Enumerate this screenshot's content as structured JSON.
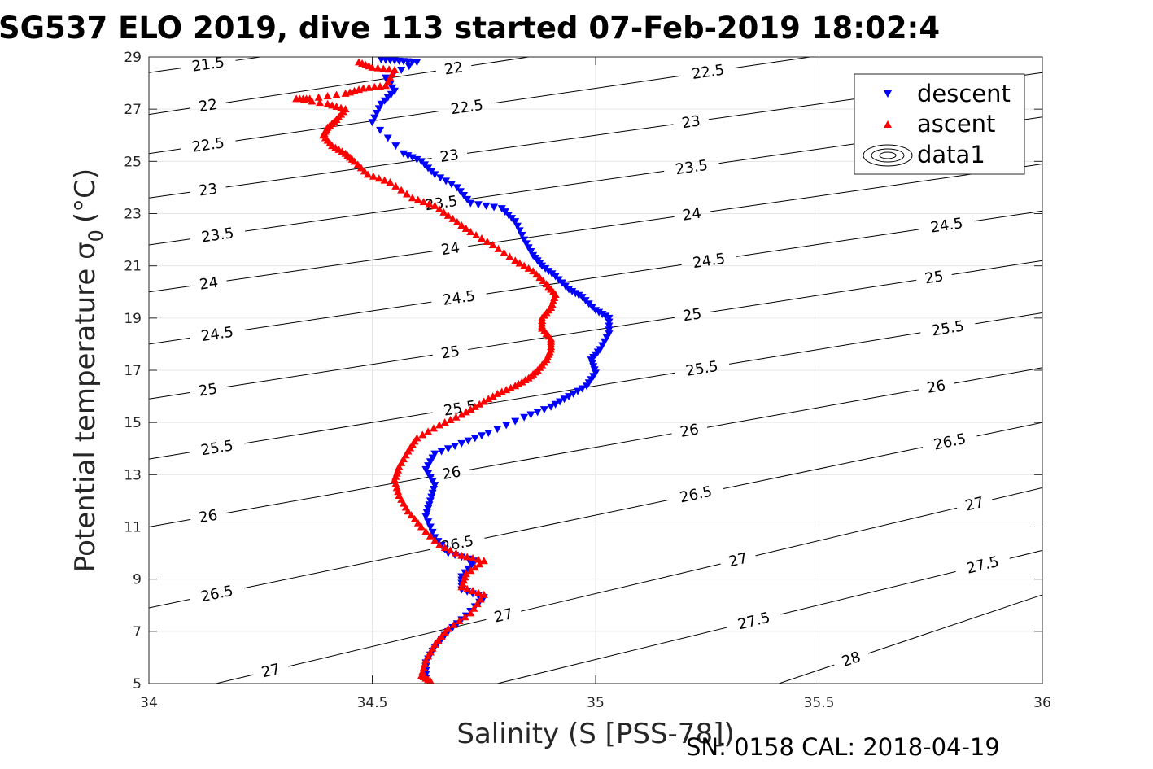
{
  "chart_data": {
    "type": "scatter",
    "title": "SG537 ELO 2019, dive 113 started 07-Feb-2019 18:02:4",
    "xlabel": "Salinity (S [PSS-78])",
    "ylabel": "Potential temperature σ",
    "ylabel_subscript": "0",
    "ylabel_unit": "(°C)",
    "footer": "SN: 0158  CAL: 2018-04-19",
    "xlim": [
      34,
      36
    ],
    "ylim": [
      5,
      29
    ],
    "xticks": [
      34,
      34.5,
      35,
      35.5,
      36
    ],
    "xtick_labels": [
      "34",
      "34.5",
      "35",
      "35.5",
      "36"
    ],
    "yticks": [
      5,
      7,
      9,
      11,
      13,
      15,
      17,
      19,
      21,
      23,
      25,
      27,
      29
    ],
    "ytick_labels": [
      "5",
      "7",
      "9",
      "11",
      "13",
      "15",
      "17",
      "19",
      "21",
      "23",
      "25",
      "27",
      "29"
    ],
    "grid": true,
    "legend_position": "top-right",
    "colors": {
      "descent": "#0000ff",
      "ascent": "#ff0000",
      "contour": "#000000",
      "grid": "#e6e6e6"
    },
    "series": [
      {
        "name": "descent",
        "marker": "triangle-down",
        "points": [
          [
            34.52,
            28.9
          ],
          [
            34.56,
            28.85
          ],
          [
            34.6,
            28.8
          ],
          [
            34.53,
            28.2
          ],
          [
            34.55,
            27.7
          ],
          [
            34.52,
            27.2
          ],
          [
            34.5,
            26.5
          ],
          [
            34.57,
            25.3
          ],
          [
            34.61,
            25.0
          ],
          [
            34.64,
            24.5
          ],
          [
            34.69,
            24.0
          ],
          [
            34.72,
            23.4
          ],
          [
            34.79,
            23.2
          ],
          [
            34.82,
            22.7
          ],
          [
            34.84,
            22.0
          ],
          [
            34.86,
            21.4
          ],
          [
            34.88,
            21.0
          ],
          [
            34.91,
            20.6
          ],
          [
            34.94,
            20.1
          ],
          [
            34.97,
            19.8
          ],
          [
            35.0,
            19.3
          ],
          [
            35.03,
            19.0
          ],
          [
            35.03,
            18.4
          ],
          [
            35.01,
            17.8
          ],
          [
            34.99,
            17.4
          ],
          [
            35.0,
            16.9
          ],
          [
            34.98,
            16.4
          ],
          [
            34.94,
            16.0
          ],
          [
            34.9,
            15.6
          ],
          [
            34.84,
            15.2
          ],
          [
            34.76,
            14.6
          ],
          [
            34.7,
            14.2
          ],
          [
            34.64,
            13.8
          ],
          [
            34.62,
            13.2
          ],
          [
            34.64,
            12.6
          ],
          [
            34.63,
            12.0
          ],
          [
            34.62,
            11.4
          ],
          [
            34.64,
            10.6
          ],
          [
            34.67,
            10.0
          ],
          [
            34.73,
            9.7
          ],
          [
            34.7,
            9.1
          ],
          [
            34.7,
            8.6
          ],
          [
            34.75,
            8.3
          ],
          [
            34.71,
            7.6
          ],
          [
            34.67,
            7.0
          ],
          [
            34.64,
            6.4
          ],
          [
            34.62,
            5.8
          ],
          [
            34.62,
            5.2
          ]
        ]
      },
      {
        "name": "ascent",
        "marker": "triangle-up",
        "points": [
          [
            34.47,
            28.8
          ],
          [
            34.5,
            28.6
          ],
          [
            34.55,
            28.5
          ],
          [
            34.53,
            27.9
          ],
          [
            34.48,
            27.8
          ],
          [
            34.44,
            27.6
          ],
          [
            34.36,
            27.4
          ],
          [
            34.33,
            27.4
          ],
          [
            34.4,
            27.2
          ],
          [
            34.44,
            27.0
          ],
          [
            34.42,
            26.6
          ],
          [
            34.4,
            26.3
          ],
          [
            34.39,
            26.0
          ],
          [
            34.41,
            25.6
          ],
          [
            34.44,
            25.3
          ],
          [
            34.46,
            25.0
          ],
          [
            34.49,
            24.5
          ],
          [
            34.54,
            24.2
          ],
          [
            34.59,
            23.6
          ],
          [
            34.64,
            23.3
          ],
          [
            34.68,
            22.8
          ],
          [
            34.72,
            22.3
          ],
          [
            34.77,
            21.8
          ],
          [
            34.82,
            21.2
          ],
          [
            34.86,
            20.8
          ],
          [
            34.89,
            20.3
          ],
          [
            34.91,
            19.9
          ],
          [
            34.9,
            19.4
          ],
          [
            34.88,
            19.0
          ],
          [
            34.88,
            18.6
          ],
          [
            34.9,
            18.2
          ],
          [
            34.9,
            17.8
          ],
          [
            34.89,
            17.4
          ],
          [
            34.87,
            17.0
          ],
          [
            34.85,
            16.7
          ],
          [
            34.82,
            16.4
          ],
          [
            34.78,
            16.1
          ],
          [
            34.74,
            15.7
          ],
          [
            34.7,
            15.3
          ],
          [
            34.65,
            14.9
          ],
          [
            34.6,
            14.4
          ],
          [
            34.58,
            13.9
          ],
          [
            34.56,
            13.3
          ],
          [
            34.55,
            12.8
          ],
          [
            34.56,
            12.2
          ],
          [
            34.58,
            11.6
          ],
          [
            34.61,
            11.0
          ],
          [
            34.65,
            10.3
          ],
          [
            34.7,
            9.9
          ],
          [
            34.75,
            9.7
          ],
          [
            34.71,
            9.2
          ],
          [
            34.7,
            8.7
          ],
          [
            34.75,
            8.4
          ],
          [
            34.72,
            7.7
          ],
          [
            34.67,
            7.1
          ],
          [
            34.64,
            6.5
          ],
          [
            34.62,
            5.9
          ],
          [
            34.61,
            5.3
          ],
          [
            34.63,
            5.1
          ]
        ]
      }
    ],
    "contours": {
      "legend_name": "data1",
      "levels": [
        {
          "label": "21.5",
          "line": [
            [
              34.0,
              28.4
            ],
            [
              34.25,
              29.0
            ]
          ],
          "label_at": [
            34.1,
            28.7
          ]
        },
        {
          "label": "22",
          "line": [
            [
              34.0,
              26.8
            ],
            [
              34.85,
              29.0
            ]
          ],
          "label_at": [
            34.1,
            27.1
          ],
          "label_at2": [
            34.65,
            28.5
          ]
        },
        {
          "label": "22.5",
          "line": [
            [
              34.0,
              25.3
            ],
            [
              35.48,
              29.0
            ]
          ],
          "label_at": [
            34.1,
            25.6
          ],
          "label_at2": [
            34.68,
            27.0
          ],
          "label_at3": [
            35.22,
            28.3
          ]
        },
        {
          "label": "23",
          "line": [
            [
              34.0,
              23.6
            ],
            [
              36.0,
              28.4
            ]
          ],
          "label_at": [
            34.1,
            23.9
          ],
          "label_at2": [
            34.64,
            25.2
          ],
          "label_at3": [
            35.18,
            26.6
          ]
        },
        {
          "label": "23.5",
          "line": [
            [
              34.0,
              21.8
            ],
            [
              36.0,
              26.7
            ]
          ],
          "label_at": [
            34.12,
            22.3
          ],
          "label_at2": [
            34.62,
            23.6
          ],
          "label_at3": [
            35.18,
            25.0
          ]
        },
        {
          "label": "24",
          "line": [
            [
              34.0,
              20.0
            ],
            [
              36.0,
              24.9
            ]
          ],
          "label_at": [
            34.1,
            20.5
          ],
          "label_at2": [
            34.64,
            21.9
          ],
          "label_at3": [
            35.18,
            23.3
          ]
        },
        {
          "label": "24.5",
          "line": [
            [
              34.0,
              18.0
            ],
            [
              36.0,
              23.1
            ]
          ],
          "label_at": [
            34.12,
            18.4
          ],
          "label_at2": [
            34.66,
            19.9
          ],
          "label_at3": [
            35.22,
            21.3
          ],
          "label_at4": [
            35.75,
            22.9
          ]
        },
        {
          "label": "25",
          "line": [
            [
              34.0,
              15.9
            ],
            [
              36.0,
              21.2
            ]
          ],
          "label_at": [
            34.1,
            16.2
          ],
          "label_at2": [
            34.64,
            17.9
          ],
          "label_at3": [
            35.18,
            19.5
          ],
          "label_at4": [
            35.72,
            21.1
          ]
        },
        {
          "label": "25.5",
          "line": [
            [
              34.0,
              13.6
            ],
            [
              36.0,
              19.2
            ]
          ],
          "label_at": [
            34.12,
            14.0
          ],
          "label_at2": [
            34.66,
            15.9
          ],
          "label_at3": [
            35.2,
            17.6
          ],
          "label_at4": [
            35.75,
            19.2
          ]
        },
        {
          "label": "26",
          "line": [
            [
              34.0,
              11.0
            ],
            [
              36.0,
              17.1
            ]
          ],
          "label_at": [
            34.1,
            11.4
          ],
          "label_at2": [
            34.64,
            13.5
          ],
          "label_at3": [
            35.17,
            15.4
          ],
          "label_at4": [
            35.72,
            17.3
          ]
        },
        {
          "label": "26.5",
          "line": [
            [
              34.0,
              7.9
            ],
            [
              36.0,
              15.0
            ]
          ],
          "label_at": [
            34.12,
            8.4
          ],
          "label_at2": [
            34.65,
            11.0
          ],
          "label_at3": [
            35.18,
            13.2
          ],
          "label_at4": [
            35.75,
            15.1
          ]
        },
        {
          "label": "27",
          "line": [
            [
              34.15,
              5.0
            ],
            [
              36.0,
              12.5
            ]
          ],
          "label_at": [
            34.24,
            5.5
          ],
          "label_at2": [
            34.75,
            8.4
          ],
          "label_at3": [
            35.27,
            10.9
          ],
          "label_at4": [
            35.8,
            13.0
          ]
        },
        {
          "label": "27.5",
          "line": [
            [
              34.78,
              5.0
            ],
            [
              36.0,
              10.1
            ]
          ],
          "label_at": [
            35.31,
            8.2
          ],
          "label_at2": [
            35.82,
            10.5
          ]
        },
        {
          "label": "28",
          "line": [
            [
              35.41,
              5.0
            ],
            [
              36.0,
              8.4
            ]
          ],
          "label_at": [
            35.54,
            5.9
          ]
        }
      ]
    }
  }
}
